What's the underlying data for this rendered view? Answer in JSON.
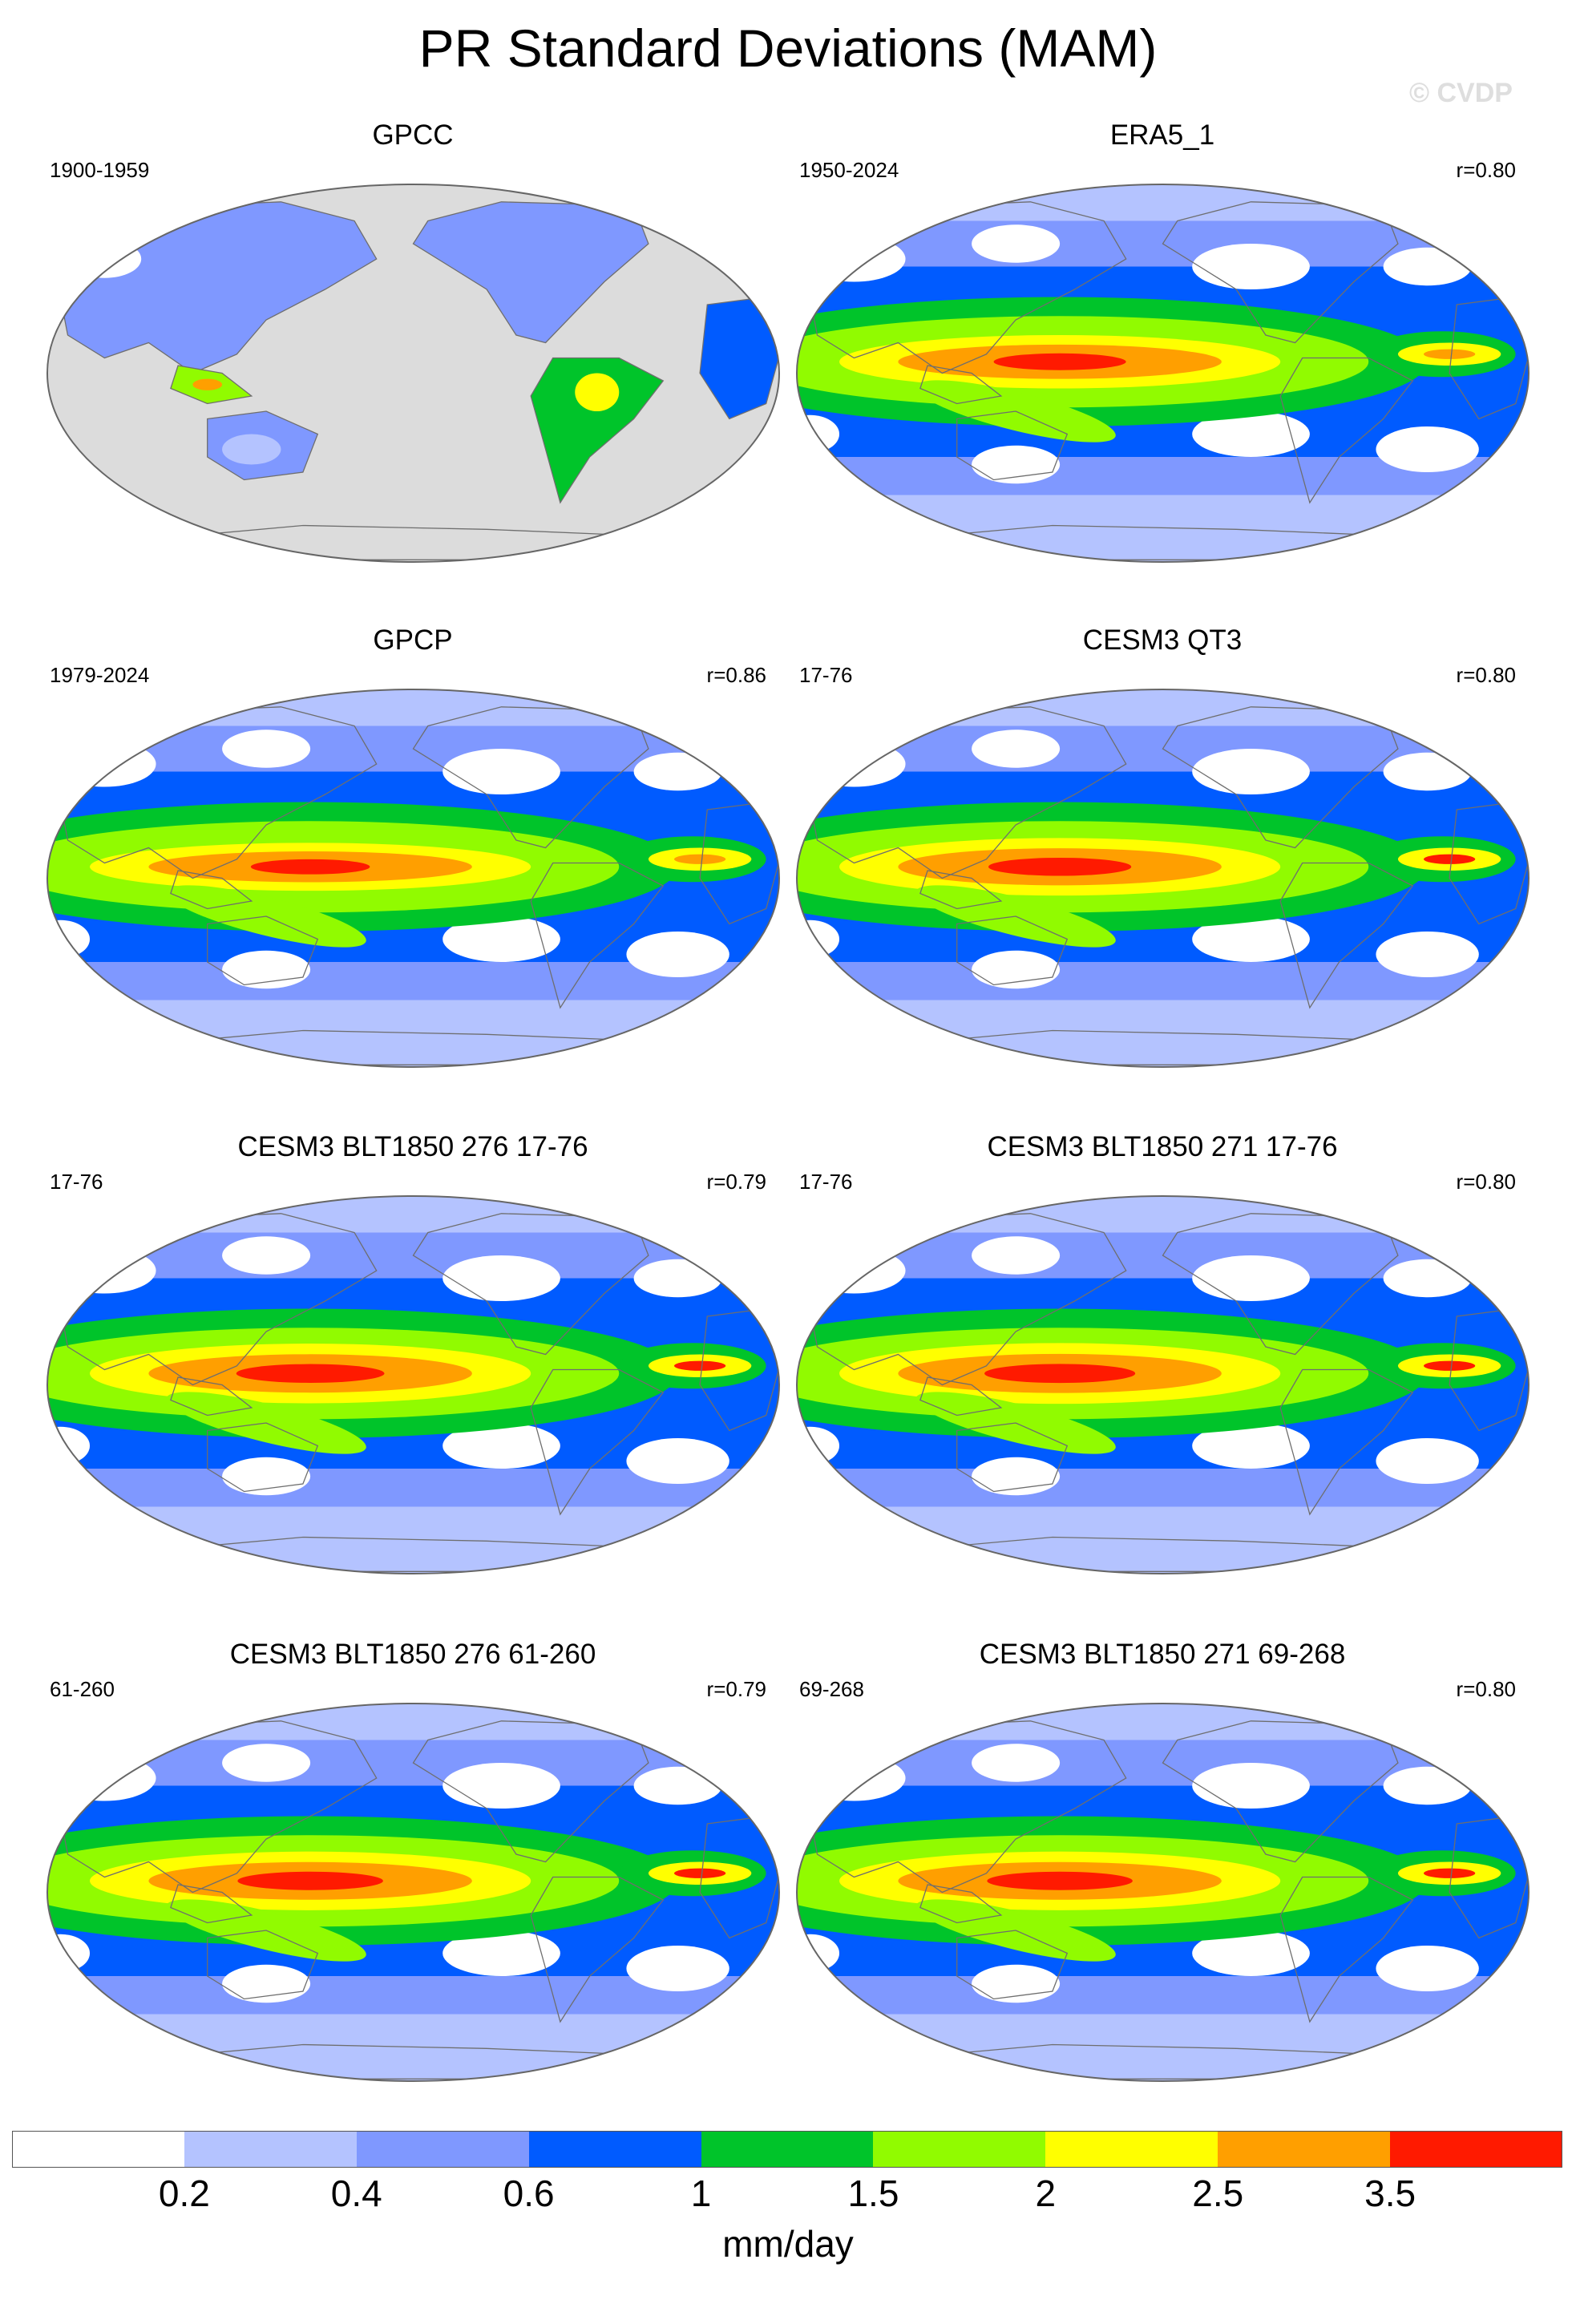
{
  "figure": {
    "title": "PR Standard Deviations (MAM)",
    "watermark": "© CVDP"
  },
  "colors": {
    "levels": [
      "#ffffff",
      "#b4c3ff",
      "#7f98ff",
      "#005bff",
      "#00c42a",
      "#91fb00",
      "#ffff00",
      "#ff9f00",
      "#ff1a00"
    ],
    "land_mask": "#dcdcdc",
    "coastline": "#6e6e6e"
  },
  "panels": [
    {
      "title": "GPCC",
      "period": "1900-1959",
      "corr": "",
      "type": "land"
    },
    {
      "title": "ERA5_1",
      "period": "1950-2024",
      "corr": "r=0.80",
      "type": "full",
      "amp": 1.0
    },
    {
      "title": "GPCP",
      "period": "1979-2024",
      "corr": "r=0.86",
      "type": "full",
      "amp": 0.9
    },
    {
      "title": "CESM3 QT3",
      "period": "17-76",
      "corr": "r=0.80",
      "type": "full",
      "amp": 1.08
    },
    {
      "title": "CESM3 BLT1850 276 17-76",
      "period": "17-76",
      "corr": "r=0.79",
      "type": "full",
      "amp": 1.12
    },
    {
      "title": "CESM3 BLT1850 271 17-76",
      "period": "17-76",
      "corr": "r=0.80",
      "type": "full",
      "amp": 1.14
    },
    {
      "title": "CESM3 BLT1850 276 61-260",
      "period": "61-260",
      "corr": "r=0.79",
      "type": "full",
      "amp": 1.1
    },
    {
      "title": "CESM3 BLT1850 271 69-268",
      "period": "69-268",
      "corr": "r=0.80",
      "type": "full",
      "amp": 1.1
    }
  ],
  "colorbar": {
    "labels": [
      "0.2",
      "0.4",
      "0.6",
      "1",
      "1.5",
      "2",
      "2.5",
      "3.5"
    ],
    "units": "mm/day"
  }
}
